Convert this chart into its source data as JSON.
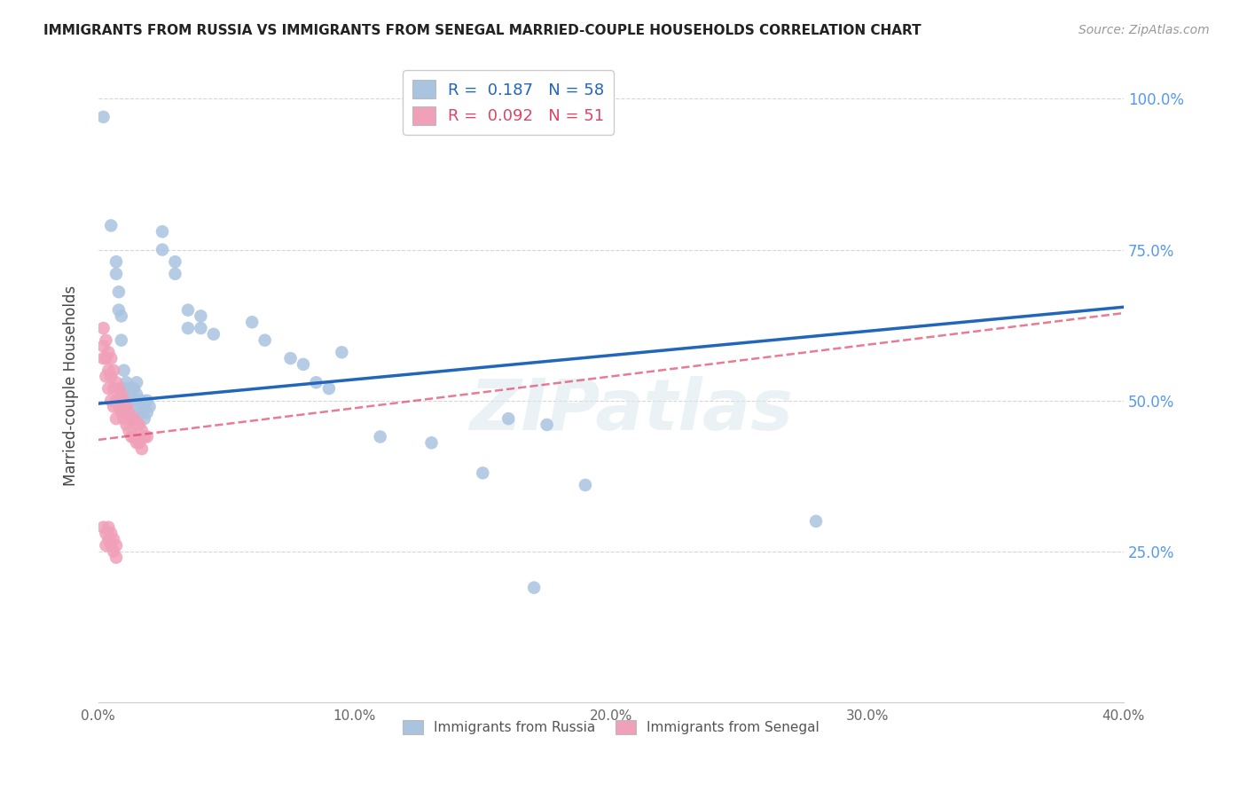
{
  "title": "IMMIGRANTS FROM RUSSIA VS IMMIGRANTS FROM SENEGAL MARRIED-COUPLE HOUSEHOLDS CORRELATION CHART",
  "source": "Source: ZipAtlas.com",
  "ylabel": "Married-couple Households",
  "xlim": [
    0.0,
    0.4
  ],
  "ylim": [
    0.0,
    1.05
  ],
  "xtick_labels": [
    "0.0%",
    "10.0%",
    "20.0%",
    "30.0%",
    "40.0%"
  ],
  "xtick_vals": [
    0.0,
    0.1,
    0.2,
    0.3,
    0.4
  ],
  "ytick_labels": [
    "25.0%",
    "50.0%",
    "75.0%",
    "100.0%"
  ],
  "ytick_vals": [
    0.25,
    0.5,
    0.75,
    1.0
  ],
  "russia_R": 0.187,
  "russia_N": 58,
  "senegal_R": 0.092,
  "senegal_N": 51,
  "russia_color": "#aac4e0",
  "senegal_color": "#f0a0b8",
  "russia_line_color": "#2266bb",
  "senegal_line_color": "#dd4466",
  "senegal_line_style": "--",
  "watermark": "ZIPatlas",
  "russia_points": [
    [
      0.002,
      0.97
    ],
    [
      0.005,
      0.79
    ],
    [
      0.007,
      0.73
    ],
    [
      0.007,
      0.71
    ],
    [
      0.008,
      0.68
    ],
    [
      0.008,
      0.65
    ],
    [
      0.009,
      0.64
    ],
    [
      0.009,
      0.6
    ],
    [
      0.01,
      0.55
    ],
    [
      0.01,
      0.52
    ],
    [
      0.01,
      0.5
    ],
    [
      0.01,
      0.48
    ],
    [
      0.011,
      0.53
    ],
    [
      0.011,
      0.51
    ],
    [
      0.011,
      0.49
    ],
    [
      0.012,
      0.52
    ],
    [
      0.012,
      0.5
    ],
    [
      0.012,
      0.48
    ],
    [
      0.013,
      0.51
    ],
    [
      0.013,
      0.49
    ],
    [
      0.013,
      0.47
    ],
    [
      0.014,
      0.52
    ],
    [
      0.014,
      0.5
    ],
    [
      0.015,
      0.53
    ],
    [
      0.015,
      0.51
    ],
    [
      0.016,
      0.5
    ],
    [
      0.016,
      0.48
    ],
    [
      0.017,
      0.5
    ],
    [
      0.017,
      0.48
    ],
    [
      0.018,
      0.49
    ],
    [
      0.018,
      0.47
    ],
    [
      0.019,
      0.5
    ],
    [
      0.019,
      0.48
    ],
    [
      0.02,
      0.49
    ],
    [
      0.025,
      0.78
    ],
    [
      0.025,
      0.75
    ],
    [
      0.03,
      0.73
    ],
    [
      0.03,
      0.71
    ],
    [
      0.035,
      0.65
    ],
    [
      0.035,
      0.62
    ],
    [
      0.04,
      0.64
    ],
    [
      0.04,
      0.62
    ],
    [
      0.045,
      0.61
    ],
    [
      0.06,
      0.63
    ],
    [
      0.065,
      0.6
    ],
    [
      0.075,
      0.57
    ],
    [
      0.08,
      0.56
    ],
    [
      0.085,
      0.53
    ],
    [
      0.09,
      0.52
    ],
    [
      0.095,
      0.58
    ],
    [
      0.11,
      0.44
    ],
    [
      0.13,
      0.43
    ],
    [
      0.15,
      0.38
    ],
    [
      0.16,
      0.47
    ],
    [
      0.175,
      0.46
    ],
    [
      0.19,
      0.36
    ],
    [
      0.28,
      0.3
    ],
    [
      0.17,
      0.19
    ]
  ],
  "senegal_points": [
    [
      0.002,
      0.62
    ],
    [
      0.002,
      0.59
    ],
    [
      0.002,
      0.57
    ],
    [
      0.003,
      0.6
    ],
    [
      0.003,
      0.57
    ],
    [
      0.003,
      0.54
    ],
    [
      0.004,
      0.58
    ],
    [
      0.004,
      0.55
    ],
    [
      0.004,
      0.52
    ],
    [
      0.005,
      0.57
    ],
    [
      0.005,
      0.54
    ],
    [
      0.005,
      0.5
    ],
    [
      0.006,
      0.55
    ],
    [
      0.006,
      0.52
    ],
    [
      0.006,
      0.49
    ],
    [
      0.007,
      0.53
    ],
    [
      0.007,
      0.5
    ],
    [
      0.007,
      0.47
    ],
    [
      0.008,
      0.52
    ],
    [
      0.008,
      0.49
    ],
    [
      0.009,
      0.51
    ],
    [
      0.009,
      0.48
    ],
    [
      0.01,
      0.5
    ],
    [
      0.01,
      0.47
    ],
    [
      0.011,
      0.49
    ],
    [
      0.011,
      0.46
    ],
    [
      0.012,
      0.48
    ],
    [
      0.012,
      0.45
    ],
    [
      0.013,
      0.47
    ],
    [
      0.013,
      0.44
    ],
    [
      0.014,
      0.47
    ],
    [
      0.014,
      0.44
    ],
    [
      0.015,
      0.46
    ],
    [
      0.015,
      0.43
    ],
    [
      0.016,
      0.46
    ],
    [
      0.016,
      0.43
    ],
    [
      0.017,
      0.45
    ],
    [
      0.017,
      0.42
    ],
    [
      0.018,
      0.44
    ],
    [
      0.019,
      0.44
    ],
    [
      0.002,
      0.29
    ],
    [
      0.003,
      0.28
    ],
    [
      0.003,
      0.26
    ],
    [
      0.004,
      0.29
    ],
    [
      0.004,
      0.27
    ],
    [
      0.005,
      0.28
    ],
    [
      0.005,
      0.26
    ],
    [
      0.006,
      0.27
    ],
    [
      0.006,
      0.25
    ],
    [
      0.007,
      0.26
    ],
    [
      0.007,
      0.24
    ]
  ]
}
